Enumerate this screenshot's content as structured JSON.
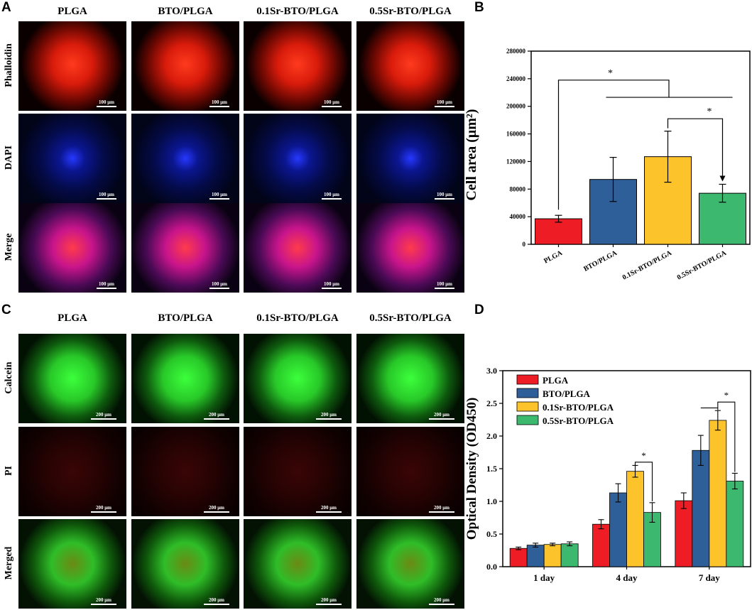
{
  "panels": {
    "a": "A",
    "b": "B",
    "c": "C",
    "d": "D"
  },
  "panel_a": {
    "columns": [
      "PLGA",
      "BTO/PLGA",
      "0.1Sr-BTO/PLGA",
      "0.5Sr-BTO/PLGA"
    ],
    "rows": [
      "Phalloidin",
      "DAPI",
      "Merge"
    ],
    "scale": "100 μm"
  },
  "panel_c": {
    "columns": [
      "PLGA",
      "BTO/PLGA",
      "0.1Sr-BTO/PLGA",
      "0.5Sr-BTO/PLGA"
    ],
    "rows": [
      "Calcein",
      "PI",
      "Merged"
    ],
    "scale": "200 μm"
  },
  "colors": {
    "PLGA": "#ee1c25",
    "BTO/PLGA": "#2f5f98",
    "0.1Sr-BTO/PLGA": "#fdc32b",
    "0.5Sr-BTO/PLGA": "#3cb86f"
  },
  "chart_data": [
    {
      "panel": "B",
      "type": "bar",
      "categories": [
        "PLGA",
        "BTO/PLGA",
        "0.1Sr-BTO/PLGA",
        "0.5Sr-BTO/PLGA"
      ],
      "values": [
        37000,
        94000,
        127000,
        74000
      ],
      "errors": [
        5000,
        32000,
        37000,
        13000
      ],
      "ylabel": "Cell area (μm²)",
      "ylim": [
        0,
        280000
      ],
      "yticks": [
        0,
        40000,
        80000,
        120000,
        160000,
        200000,
        240000,
        280000
      ],
      "annotations": [
        "*",
        "*"
      ]
    },
    {
      "panel": "D",
      "type": "bar",
      "categories": [
        "1 day",
        "4 day",
        "7 day"
      ],
      "series": [
        {
          "name": "PLGA",
          "values": [
            0.28,
            0.65,
            1.01
          ],
          "errors": [
            0.02,
            0.07,
            0.12
          ]
        },
        {
          "name": "BTO/PLGA",
          "values": [
            0.33,
            1.13,
            1.78
          ],
          "errors": [
            0.03,
            0.14,
            0.23
          ]
        },
        {
          "name": "0.1Sr-BTO/PLGA",
          "values": [
            0.34,
            1.46,
            2.24
          ],
          "errors": [
            0.02,
            0.09,
            0.15
          ]
        },
        {
          "name": "0.5Sr-BTO/PLGA",
          "values": [
            0.35,
            0.83,
            1.31
          ],
          "errors": [
            0.03,
            0.15,
            0.12
          ]
        }
      ],
      "ylabel": "Optical Density (OD450)",
      "ylim": [
        0,
        3.0
      ],
      "yticks": [
        "0.0",
        "0.5",
        "1.0",
        "1.5",
        "2.0",
        "2.5",
        "3.0"
      ],
      "legend": "top-left",
      "annotations": [
        "*",
        "*"
      ]
    }
  ]
}
